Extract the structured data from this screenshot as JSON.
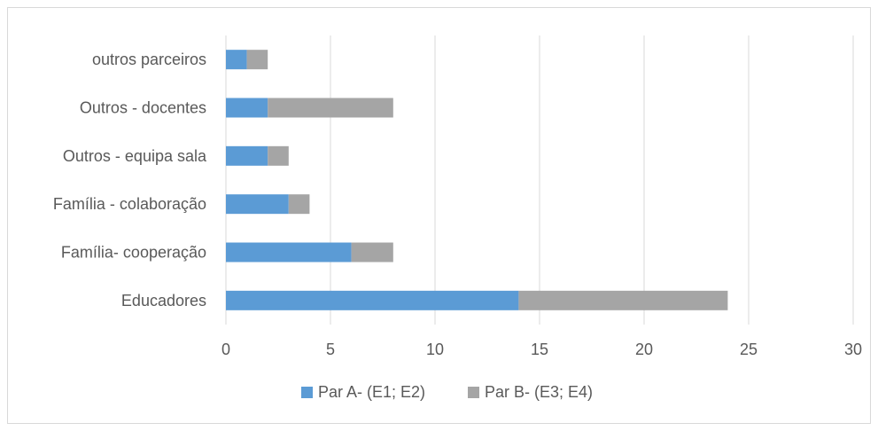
{
  "chart_data": {
    "type": "bar",
    "orientation": "horizontal",
    "stacked": true,
    "categories": [
      "Educadores",
      "Família- cooperação",
      "Família - colaboração",
      "Outros - equipa sala",
      "Outros - docentes",
      "outros parceiros"
    ],
    "series": [
      {
        "name": "Par A- (E1; E2)",
        "color": "#5b9bd5",
        "values": [
          14,
          6,
          3,
          2,
          2,
          1
        ]
      },
      {
        "name": "Par B- (E3; E4)",
        "color": "#a5a5a5",
        "values": [
          10,
          2,
          1,
          1,
          6,
          1
        ]
      }
    ],
    "xlim": [
      0,
      30
    ],
    "xticks": [
      "0",
      "5",
      "10",
      "15",
      "20",
      "25",
      "30"
    ],
    "grid": true,
    "legend_position": "bottom"
  }
}
